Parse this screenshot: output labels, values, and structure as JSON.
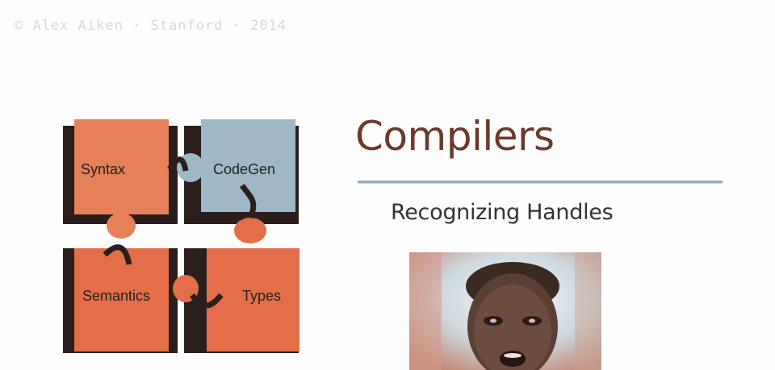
{
  "watermark": "© Alex Aiken · Stanford · 2014",
  "slide": {
    "title": "Compilers",
    "subtitle": "Recognizing Handles"
  },
  "puzzle": {
    "pieces": [
      {
        "label": "Syntax",
        "color": "#e6805a"
      },
      {
        "label": "CodeGen",
        "color": "#9fb8c8"
      },
      {
        "label": "Semantics",
        "color": "#e46e4a"
      },
      {
        "label": "Types",
        "color": "#e46e4a"
      }
    ]
  },
  "colors": {
    "title": "#6b3a2a",
    "rule": "#8fb0c4"
  }
}
